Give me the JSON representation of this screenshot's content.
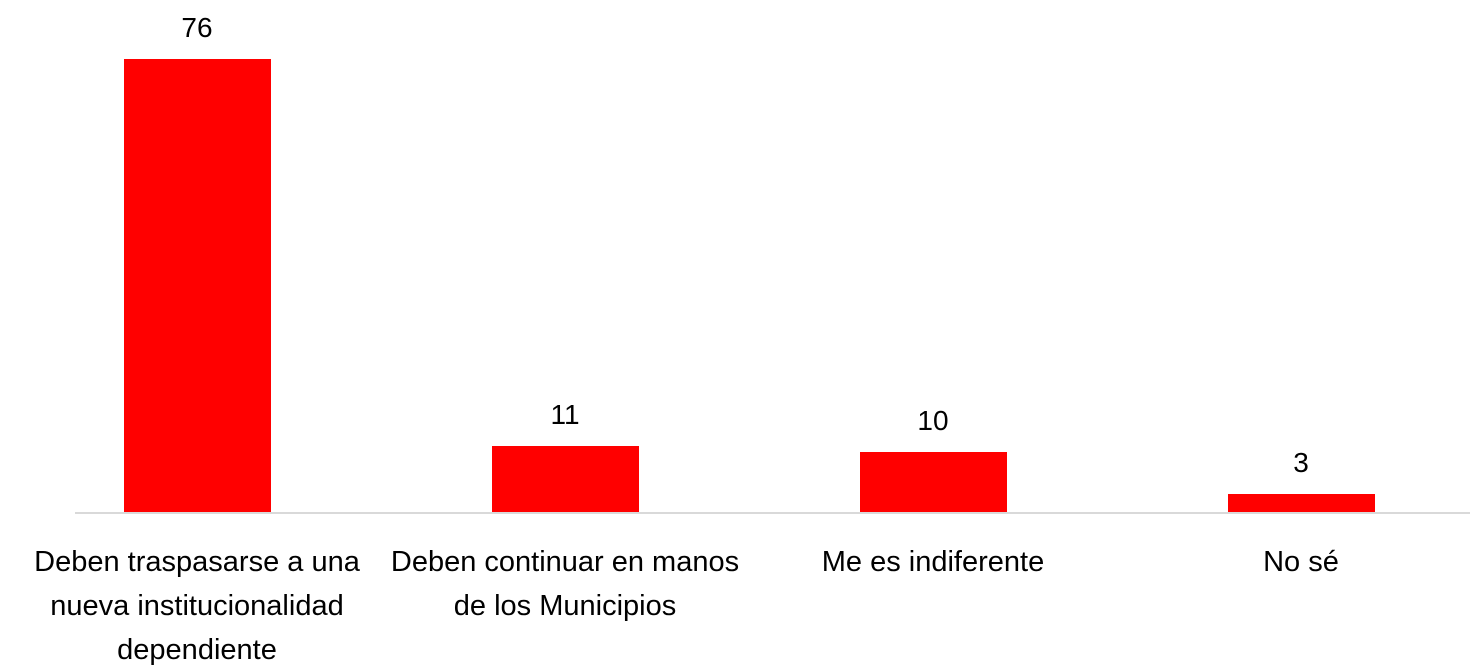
{
  "chart_data": {
    "type": "bar",
    "categories": [
      "Deben traspasarse a una nueva institucionalidad dependiente",
      "Deben continuar en manos de los Municipios",
      "Me es indiferente",
      "No sé"
    ],
    "values": [
      76,
      11,
      10,
      3
    ],
    "color": "#ff0000"
  }
}
